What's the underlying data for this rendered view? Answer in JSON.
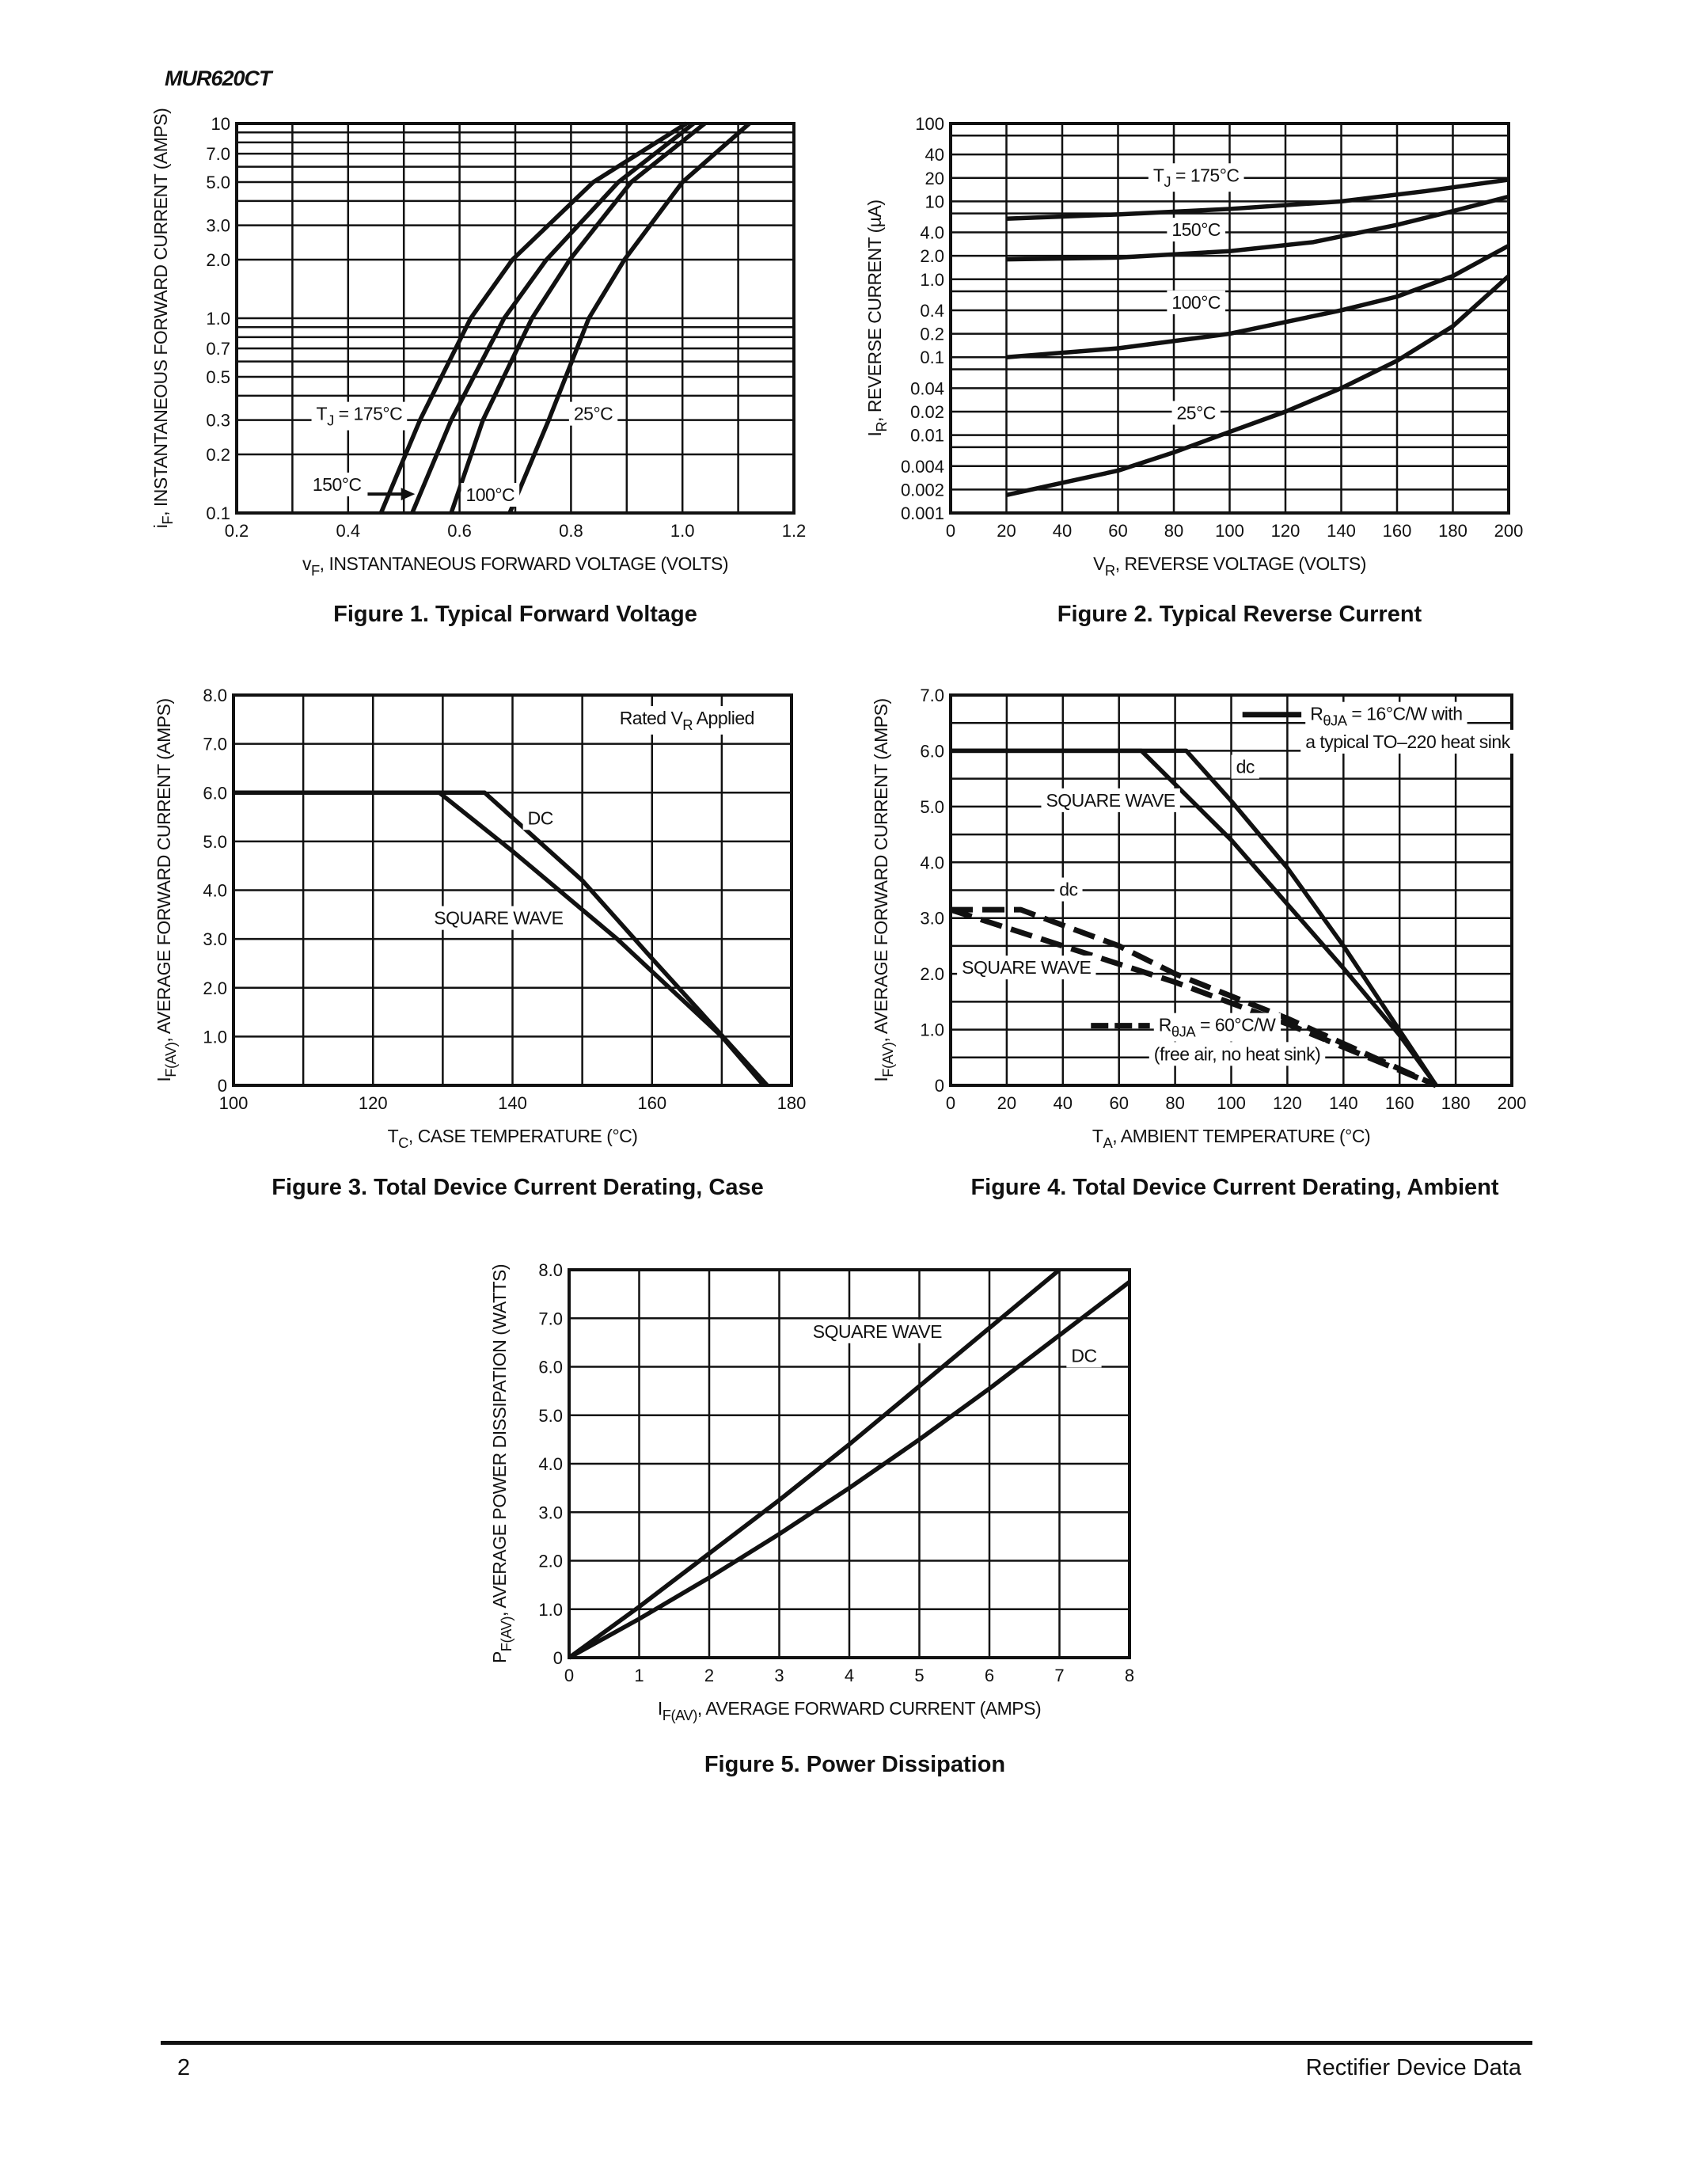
{
  "header": {
    "part_number": "MUR620CT"
  },
  "footer": {
    "page_number": "2",
    "title": "Rectifier Device Data"
  },
  "chart_data": [
    {
      "type": "line",
      "caption": "Figure 1. Typical Forward Voltage",
      "xlabel": {
        "pre": "v",
        "sub": "F",
        "post": ", INSTANTANEOUS FORWARD VOLTAGE (VOLTS)"
      },
      "ylabel": {
        "pre": "i",
        "sub": "F",
        "post": ", INSTANTANEOUS FORWARD CURRENT (AMPS)"
      },
      "xlim": [
        0.2,
        1.2
      ],
      "ylim": [
        0.1,
        10
      ],
      "yscale": "log",
      "grid": true,
      "xticks": [
        "0.2",
        "0.4",
        "0.6",
        "0.8",
        "1.0",
        "1.2"
      ],
      "yticks": [
        "10",
        "7.0",
        "5.0",
        "3.0",
        "2.0",
        "1.0",
        "0.7",
        "0.5",
        "0.3",
        "0.2",
        "0.1"
      ],
      "series": [
        {
          "name": {
            "pre": "T",
            "sub": "J",
            "post": " = 175°C"
          },
          "x": [
            0.459,
            0.529,
            0.62,
            0.695,
            0.84,
            1.007
          ],
          "y": [
            0.1,
            0.3,
            1.0,
            2.0,
            5.0,
            10
          ]
        },
        {
          "name": "150°C",
          "x": [
            0.515,
            0.585,
            0.68,
            0.756,
            0.885,
            1.02
          ],
          "y": [
            0.1,
            0.3,
            1.0,
            2.0,
            5.0,
            10
          ]
        },
        {
          "name": "100°C",
          "x": [
            0.585,
            0.642,
            0.73,
            0.798,
            0.908,
            1.04
          ],
          "y": [
            0.1,
            0.3,
            1.0,
            2.0,
            5.0,
            10
          ]
        },
        {
          "name": "25°C",
          "x": [
            0.69,
            0.76,
            0.832,
            0.896,
            1.0,
            1.12
          ],
          "y": [
            0.1,
            0.3,
            1.0,
            2.0,
            5.0,
            10
          ]
        }
      ]
    },
    {
      "type": "line",
      "caption": "Figure 2. Typical Reverse Current",
      "xlabel": {
        "pre": "V",
        "sub": "R",
        "post": ", REVERSE VOLTAGE (VOLTS)"
      },
      "ylabel": {
        "pre": "I",
        "sub": "R",
        "post": ", REVERSE CURRENT (µA)"
      },
      "xlim": [
        0,
        200
      ],
      "ylim": [
        0.001,
        100
      ],
      "yscale": "log",
      "grid": true,
      "xticks": [
        "0",
        "20",
        "40",
        "60",
        "80",
        "100",
        "120",
        "140",
        "160",
        "180",
        "200"
      ],
      "yticks": [
        "100",
        "40",
        "20",
        "10",
        "4.0",
        "2.0",
        "1.0",
        "0.4",
        "0.2",
        "0.1",
        "0.04",
        "0.02",
        "0.01",
        "0.004",
        "0.002",
        "0.001"
      ],
      "series": [
        {
          "name": {
            "pre": "T",
            "sub": "J",
            "post": " = 175°C"
          },
          "x": [
            20,
            60,
            100,
            140,
            170,
            200
          ],
          "y": [
            6,
            6.8,
            8,
            10,
            13.5,
            19
          ]
        },
        {
          "name": "150°C",
          "x": [
            20,
            60,
            100,
            130,
            160,
            180,
            200
          ],
          "y": [
            1.8,
            1.9,
            2.3,
            3,
            5,
            7.5,
            11.5
          ]
        },
        {
          "name": "100°C",
          "x": [
            20,
            60,
            100,
            140,
            160,
            180,
            200
          ],
          "y": [
            0.1,
            0.13,
            0.2,
            0.4,
            0.6,
            1.1,
            2.7
          ]
        },
        {
          "name": "25°C",
          "x": [
            20,
            60,
            80,
            100,
            120,
            140,
            160,
            180,
            200
          ],
          "y": [
            0.0017,
            0.0035,
            0.006,
            0.011,
            0.02,
            0.04,
            0.09,
            0.25,
            1.1
          ]
        }
      ]
    },
    {
      "type": "line",
      "caption": "Figure 3. Total Device Current Derating, Case",
      "xlabel": {
        "pre": "T",
        "sub": "C",
        "post": ", CASE TEMPERATURE (°C)"
      },
      "ylabel": {
        "pre": "I",
        "sub": "F(AV)",
        "post": ", AVERAGE FORWARD CURRENT (AMPS)"
      },
      "xlim": [
        100,
        180
      ],
      "ylim": [
        0,
        8
      ],
      "yscale": "linear",
      "grid": true,
      "xticks": [
        "100",
        "120",
        "140",
        "160",
        "180"
      ],
      "yticks": [
        "8.0",
        "7.0",
        "6.0",
        "5.0",
        "4.0",
        "3.0",
        "2.0",
        "1.0",
        "0"
      ],
      "note": {
        "pre": "Rated V",
        "sub": "R",
        "post": " Applied"
      },
      "series": [
        {
          "name": "DC",
          "x": [
            100,
            136,
            150,
            160,
            176.5
          ],
          "y": [
            6,
            6,
            4.2,
            2.6,
            0
          ]
        },
        {
          "name": "SQUARE WAVE",
          "x": [
            100,
            129.5,
            140,
            155,
            170,
            176
          ],
          "y": [
            6,
            6,
            4.8,
            3,
            1,
            0
          ]
        }
      ]
    },
    {
      "type": "line",
      "caption": "Figure 4. Total Device Current Derating, Ambient",
      "xlabel": {
        "pre": "T",
        "sub": "A",
        "post": ", AMBIENT TEMPERATURE (°C)"
      },
      "ylabel": {
        "pre": "I",
        "sub": "F(AV)",
        "post": ", AVERAGE FORWARD CURRENT (AMPS)"
      },
      "xlim": [
        0,
        200
      ],
      "ylim": [
        0,
        7
      ],
      "yscale": "linear",
      "grid": true,
      "xticks": [
        "0",
        "20",
        "40",
        "60",
        "80",
        "100",
        "120",
        "140",
        "160",
        "180",
        "200"
      ],
      "yticks": [
        "7.0",
        "6.0",
        "5.0",
        "4.0",
        "3.0",
        "2.0",
        "1.0",
        "0"
      ],
      "legend": [
        {
          "style": "solid",
          "line1": {
            "pre": "R",
            "sub": "θJA",
            "post": " = 16°C/W with"
          },
          "line2": "a typical TO–220 heat sink"
        },
        {
          "style": "dashed",
          "line1": {
            "pre": "R",
            "sub": "θJA",
            "post": " = 60°C/W"
          },
          "line2": "(free air, no heat sink)"
        }
      ],
      "series": [
        {
          "name": "dc",
          "style": "solid",
          "x": [
            0,
            84,
            100,
            120,
            140,
            173
          ],
          "y": [
            6,
            6,
            5.1,
            3.9,
            2.5,
            0
          ]
        },
        {
          "name": "SQUARE WAVE",
          "style": "solid",
          "x": [
            0,
            68,
            100,
            140,
            160,
            173
          ],
          "y": [
            6,
            6,
            4.4,
            2.1,
            0.9,
            0
          ]
        },
        {
          "name": "dc",
          "style": "dashed",
          "x": [
            0,
            25,
            60,
            80,
            100,
            120,
            173
          ],
          "y": [
            3.15,
            3.15,
            2.5,
            2.0,
            1.6,
            1.2,
            0
          ]
        },
        {
          "name": "SQUARE WAVE",
          "style": "dashed",
          "x": [
            0,
            40,
            80,
            120,
            173
          ],
          "y": [
            3.15,
            2.5,
            1.85,
            1.1,
            0
          ]
        }
      ]
    },
    {
      "type": "line",
      "caption": "Figure 5. Power Dissipation",
      "xlabel": {
        "pre": "I",
        "sub": "F(AV)",
        "post": ", AVERAGE FORWARD CURRENT (AMPS)"
      },
      "ylabel": {
        "pre": "P",
        "sub": "F(AV)",
        "post": ", AVERAGE POWER DISSIPATION (WATTS)"
      },
      "xlim": [
        0,
        8
      ],
      "ylim": [
        0,
        8
      ],
      "yscale": "linear",
      "grid": true,
      "xticks": [
        "0",
        "1",
        "2",
        "3",
        "4",
        "5",
        "6",
        "7",
        "8"
      ],
      "yticks": [
        "8.0",
        "7.0",
        "6.0",
        "5.0",
        "4.0",
        "3.0",
        "2.0",
        "1.0",
        "0"
      ],
      "series": [
        {
          "name": "SQUARE WAVE",
          "x": [
            0,
            1,
            2,
            3,
            4,
            5,
            6,
            7
          ],
          "y": [
            0,
            1.05,
            2.15,
            3.25,
            4.4,
            5.6,
            6.8,
            8.0
          ]
        },
        {
          "name": "DC",
          "x": [
            0,
            1,
            2,
            3,
            4,
            5,
            6,
            7,
            8
          ],
          "y": [
            0,
            0.8,
            1.65,
            2.55,
            3.5,
            4.5,
            5.55,
            6.65,
            7.75
          ]
        }
      ]
    }
  ]
}
